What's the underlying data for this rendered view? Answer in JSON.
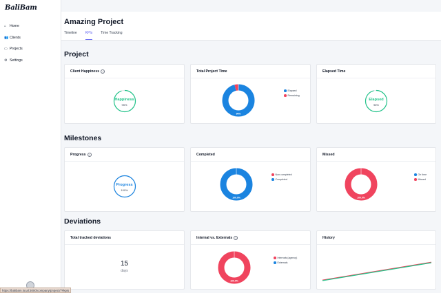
{
  "app": {
    "logo": "BaliBam"
  },
  "sidebar": {
    "items": [
      {
        "label": "Home",
        "icon": "home-icon",
        "glyph": "⌂"
      },
      {
        "label": "Clients",
        "icon": "users-icon",
        "glyph": "👥"
      },
      {
        "label": "Projects",
        "icon": "folder-icon",
        "glyph": "▭"
      },
      {
        "label": "Settings",
        "icon": "gear-icon",
        "glyph": "⚙"
      }
    ]
  },
  "header": {
    "title": "Amazing Project",
    "tabs": [
      {
        "label": "Timeline",
        "active": false
      },
      {
        "label": "KPIs",
        "active": true
      },
      {
        "label": "Time Tracking",
        "active": false
      }
    ]
  },
  "sections": {
    "project": {
      "title": "Project",
      "client_happiness": {
        "title": "Client Happiness",
        "label": "Happiness",
        "value": "95%",
        "fraction": 0.95,
        "color": "#22c48a"
      },
      "total_time": {
        "title": "Total Project Time",
        "center_label": "96%",
        "legend": [
          "Elapsed",
          "Remaining"
        ],
        "values": [
          96,
          4
        ],
        "colors": [
          "#1b84e0",
          "#f0445e"
        ]
      },
      "elapsed_time": {
        "title": "Elapsed Time",
        "label": "Elapsed",
        "value": "96%",
        "fraction": 0.96,
        "color": "#22c48a"
      }
    },
    "milestones": {
      "title": "Milestones",
      "progress": {
        "title": "Progress",
        "label": "Progress",
        "value": "100%",
        "fraction": 1.0,
        "color": "#1b84e0"
      },
      "completed": {
        "title": "Completed",
        "center_label": "100.0%",
        "legend": [
          "Non completed",
          "Completed"
        ],
        "values": [
          0,
          100
        ],
        "colors": [
          "#f0445e",
          "#1b84e0"
        ]
      },
      "missed": {
        "title": "Missed",
        "center_label": "100.0%",
        "legend": [
          "On time",
          "Missed"
        ],
        "values": [
          0,
          100
        ],
        "colors": [
          "#1b84e0",
          "#f0445e"
        ]
      }
    },
    "deviations": {
      "title": "Deviations",
      "total": {
        "title": "Total tracked deviations",
        "value": "15",
        "unit": "days"
      },
      "internal_external": {
        "title": "Internal vs. Externals",
        "center_label": "100.0%",
        "legend": [
          "Internals (agency)",
          "Externals"
        ],
        "values": [
          100,
          0
        ],
        "colors": [
          "#f0445e",
          "#1b84e0"
        ]
      },
      "history": {
        "title": "History"
      }
    }
  },
  "chart_data": {
    "type": "line",
    "series": [
      {
        "values": [
          0,
          1
        ],
        "color": "#22c48a"
      },
      {
        "values": [
          0,
          1
        ],
        "color": "#f0445e"
      }
    ],
    "x": [
      0,
      1
    ]
  },
  "statusbar": {
    "url": "https://balibam.local:3000/company/project/7#kpis"
  }
}
